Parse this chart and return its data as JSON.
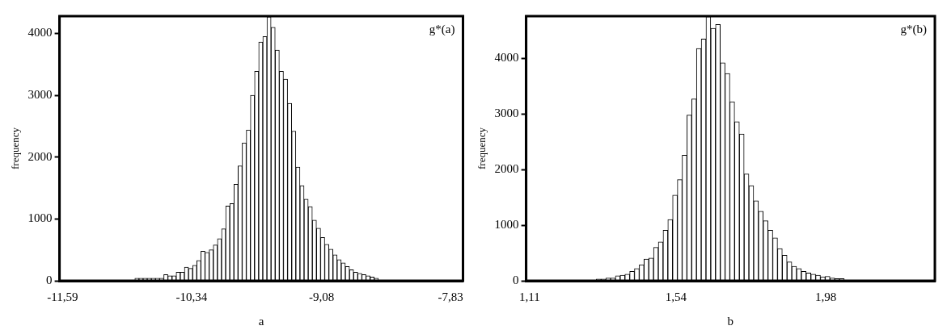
{
  "chart_data": [
    {
      "type": "histogram",
      "xlabel": "a",
      "ylabel": "frequency",
      "annotations": [
        "g*(a)"
      ],
      "color": "#ffffff",
      "bins": [
        -11.57,
        -11.53,
        -11.49,
        -11.45,
        -11.41,
        -11.37,
        -11.33,
        -11.29,
        -11.25,
        -11.21,
        -11.17,
        -11.13,
        -11.09,
        -11.05,
        -11.01,
        -10.97,
        -10.93,
        -10.89,
        -10.85,
        -10.81,
        -10.77,
        -10.73,
        -10.69,
        -10.65,
        -10.61,
        -10.57,
        -10.53,
        -10.49,
        -10.45,
        -10.41,
        -10.37,
        -10.33,
        -10.29,
        -10.25,
        -10.21,
        -10.17,
        -10.13,
        -10.09,
        -10.05,
        -10.01,
        -9.97,
        -9.93,
        -9.89,
        -9.85,
        -9.81,
        -9.77,
        -9.73,
        -9.69,
        -9.65,
        -9.61,
        -9.57,
        -9.53,
        -9.49,
        -9.45,
        -9.41,
        -9.37,
        -9.33,
        -9.29,
        -9.25,
        -9.21,
        -9.17,
        -9.13,
        -9.09,
        -9.05,
        -9.01,
        -8.97,
        -8.93,
        -8.89,
        -8.85,
        -8.81,
        -8.77,
        -8.73,
        -8.69,
        -8.65,
        -8.61,
        -8.57,
        -8.53,
        -8.49,
        -8.45,
        -8.41,
        -8.37,
        -8.33,
        -8.29,
        -8.25,
        -8.21,
        -8.17,
        -8.13,
        -8.09,
        -8.05,
        -8.01,
        -7.97,
        -7.93,
        -7.89,
        -7.85,
        -7.81,
        -7.77,
        -7.73
      ],
      "values": [
        0,
        0,
        0,
        0,
        0,
        0,
        0,
        0,
        0,
        0,
        0,
        0,
        0,
        0,
        0,
        0,
        0,
        40,
        40,
        40,
        40,
        40,
        40,
        40,
        100,
        80,
        80,
        140,
        140,
        220,
        200,
        250,
        330,
        480,
        460,
        500,
        580,
        680,
        840,
        1210,
        1250,
        1560,
        1860,
        2230,
        2440,
        3000,
        3390,
        3860,
        3950,
        4270,
        4100,
        3730,
        3390,
        3260,
        2870,
        2420,
        1840,
        1540,
        1320,
        1200,
        980,
        850,
        700,
        590,
        510,
        420,
        340,
        290,
        230,
        180,
        140,
        120,
        100,
        80,
        60,
        40,
        0,
        0,
        0,
        0,
        0,
        0,
        0,
        0,
        0,
        0,
        0,
        0,
        0,
        0,
        0,
        0,
        0,
        0,
        0,
        0
      ],
      "xlim": [
        -11.62,
        -7.71
      ],
      "xticks": [
        {
          "value": -11.59,
          "label": "-11,59"
        },
        {
          "value": -10.34,
          "label": "-10,34"
        },
        {
          "value": -9.08,
          "label": "-9,08"
        },
        {
          "value": -7.83,
          "label": "-7,83"
        }
      ],
      "ylim": [
        0,
        4280
      ],
      "yticks": [
        0,
        1000,
        2000,
        3000,
        4000
      ],
      "grid": false,
      "legend": false
    },
    {
      "type": "histogram",
      "xlabel": "b",
      "ylabel": "frequency",
      "annotations": [
        "g*(b)"
      ],
      "color": "#ffffff",
      "bins": [
        1.11,
        1.124,
        1.138,
        1.152,
        1.166,
        1.18,
        1.194,
        1.208,
        1.222,
        1.236,
        1.25,
        1.264,
        1.278,
        1.292,
        1.306,
        1.32,
        1.334,
        1.348,
        1.362,
        1.376,
        1.39,
        1.404,
        1.418,
        1.432,
        1.446,
        1.46,
        1.474,
        1.488,
        1.502,
        1.516,
        1.53,
        1.544,
        1.558,
        1.572,
        1.586,
        1.6,
        1.614,
        1.628,
        1.642,
        1.656,
        1.67,
        1.684,
        1.698,
        1.712,
        1.726,
        1.74,
        1.754,
        1.768,
        1.782,
        1.796,
        1.81,
        1.824,
        1.838,
        1.852,
        1.866,
        1.88,
        1.894,
        1.908,
        1.922,
        1.936,
        1.95,
        1.964,
        1.978,
        1.992,
        2.006,
        2.02,
        2.034,
        2.048,
        2.062,
        2.076,
        2.09,
        2.104,
        2.118,
        2.132,
        2.146,
        2.16,
        2.174,
        2.188,
        2.202,
        2.216,
        2.23,
        2.244,
        2.258,
        2.272,
        2.286,
        2.3
      ],
      "values": [
        0,
        0,
        0,
        0,
        0,
        0,
        0,
        0,
        0,
        0,
        0,
        0,
        0,
        0,
        30,
        30,
        50,
        50,
        90,
        100,
        120,
        170,
        220,
        290,
        390,
        410,
        600,
        700,
        910,
        1100,
        1540,
        1820,
        2260,
        2980,
        3270,
        4180,
        4350,
        4750,
        4540,
        4610,
        3920,
        3730,
        3220,
        2860,
        2640,
        1920,
        1710,
        1440,
        1250,
        1080,
        910,
        770,
        580,
        460,
        340,
        260,
        220,
        170,
        140,
        120,
        100,
        70,
        80,
        50,
        40,
        40,
        0,
        0,
        0,
        0,
        0,
        0,
        0,
        0,
        0,
        0,
        0,
        0,
        0,
        0,
        0,
        0,
        0,
        0,
        0
      ],
      "xlim": [
        1.1,
        2.3
      ],
      "xticks": [
        {
          "value": 1.11,
          "label": "1,11"
        },
        {
          "value": 1.54,
          "label": "1,54"
        },
        {
          "value": 1.98,
          "label": "1,98"
        }
      ],
      "ylim": [
        0,
        4760
      ],
      "yticks": [
        0,
        1000,
        2000,
        3000,
        4000
      ],
      "grid": false,
      "legend": false
    }
  ]
}
